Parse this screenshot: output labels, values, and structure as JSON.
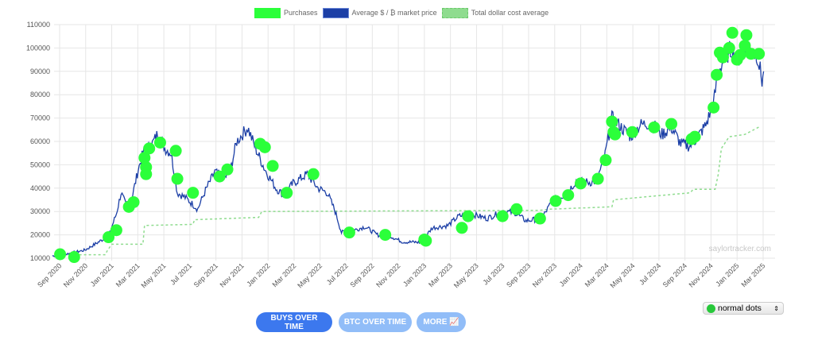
{
  "chart_data": {
    "type": "line",
    "title": "",
    "legend": [
      {
        "label": "Purchases",
        "color": "#2bff3a"
      },
      {
        "label": "Average $ / ₿ market price",
        "color": "#1c3fa6"
      },
      {
        "label": "Total dollar cost average",
        "color": "#8fdc8f"
      }
    ],
    "legend_position": "top",
    "ylim": [
      10000,
      110000
    ],
    "yticks": [
      "10000",
      "20000",
      "30000",
      "40000",
      "50000",
      "60000",
      "70000",
      "80000",
      "90000",
      "100000",
      "110000"
    ],
    "xticks": [
      "Sep 2020",
      "Nov 2020",
      "Jan 2021",
      "Mar 2021",
      "May 2021",
      "Jul 2021",
      "Sep 2021",
      "Nov 2021",
      "Jan 2022",
      "Mar 2022",
      "May 2022",
      "Jul 2022",
      "Sep 2022",
      "Nov 2022",
      "Jan 2023",
      "Mar 2023",
      "May 2023",
      "Jul 2023",
      "Sep 2023",
      "Nov 2023",
      "Jan 2024",
      "Mar 2024",
      "May 2024",
      "Jul 2024",
      "Sep 2024",
      "Nov 2024",
      "Jan 2025",
      "Mar 2025"
    ],
    "x_unit": "decimal year",
    "xlim": [
      2020.667,
      2025.167
    ],
    "grid": true,
    "price": [
      [
        2020.62,
        11000
      ],
      [
        2020.67,
        11200
      ],
      [
        2020.83,
        13500
      ],
      [
        2020.98,
        19500
      ],
      [
        2021.03,
        29000
      ],
      [
        2021.06,
        38000
      ],
      [
        2021.09,
        33000
      ],
      [
        2021.13,
        36000
      ],
      [
        2021.17,
        48000
      ],
      [
        2021.2,
        55000
      ],
      [
        2021.26,
        59000
      ],
      [
        2021.3,
        64000
      ],
      [
        2021.34,
        57000
      ],
      [
        2021.38,
        55000
      ],
      [
        2021.42,
        38000
      ],
      [
        2021.47,
        36000
      ],
      [
        2021.52,
        33000
      ],
      [
        2021.55,
        31000
      ],
      [
        2021.6,
        39000
      ],
      [
        2021.66,
        47000
      ],
      [
        2021.72,
        44000
      ],
      [
        2021.76,
        48000
      ],
      [
        2021.8,
        60000
      ],
      [
        2021.87,
        66000
      ],
      [
        2021.92,
        57000
      ],
      [
        2021.98,
        48000
      ],
      [
        2022.05,
        40000
      ],
      [
        2022.1,
        37000
      ],
      [
        2022.16,
        42000
      ],
      [
        2022.25,
        46000
      ],
      [
        2022.32,
        40000
      ],
      [
        2022.38,
        38000
      ],
      [
        2022.43,
        30000
      ],
      [
        2022.47,
        21000
      ],
      [
        2022.55,
        22000
      ],
      [
        2022.62,
        23500
      ],
      [
        2022.7,
        20000
      ],
      [
        2022.78,
        19500
      ],
      [
        2022.86,
        17000
      ],
      [
        2022.98,
        16800
      ],
      [
        2023.05,
        23000
      ],
      [
        2023.15,
        24000
      ],
      [
        2023.22,
        28000
      ],
      [
        2023.3,
        29000
      ],
      [
        2023.4,
        27000
      ],
      [
        2023.5,
        30000
      ],
      [
        2023.58,
        29500
      ],
      [
        2023.65,
        26000
      ],
      [
        2023.75,
        27000
      ],
      [
        2023.82,
        34500
      ],
      [
        2023.9,
        37000
      ],
      [
        2023.97,
        43000
      ],
      [
        2024.05,
        42500
      ],
      [
        2024.1,
        43000
      ],
      [
        2024.15,
        52000
      ],
      [
        2024.2,
        70000
      ],
      [
        2024.26,
        66000
      ],
      [
        2024.32,
        62000
      ],
      [
        2024.38,
        67000
      ],
      [
        2024.45,
        68000
      ],
      [
        2024.52,
        63000
      ],
      [
        2024.58,
        66000
      ],
      [
        2024.64,
        59000
      ],
      [
        2024.7,
        58000
      ],
      [
        2024.76,
        63000
      ],
      [
        2024.8,
        67000
      ],
      [
        2024.85,
        76000
      ],
      [
        2024.88,
        90000
      ],
      [
        2024.93,
        97000
      ],
      [
        2024.97,
        100000
      ],
      [
        2025.0,
        94000
      ],
      [
        2025.05,
        102000
      ],
      [
        2025.09,
        98000
      ],
      [
        2025.13,
        97000
      ],
      [
        2025.16,
        86000
      ],
      [
        2025.17,
        90000
      ]
    ],
    "dca": [
      [
        2020.67,
        11500
      ],
      [
        2020.96,
        11500
      ],
      [
        2020.97,
        13000
      ],
      [
        2021.0,
        16000
      ],
      [
        2021.2,
        16000
      ],
      [
        2021.21,
        24000
      ],
      [
        2021.52,
        24500
      ],
      [
        2021.53,
        26500
      ],
      [
        2021.94,
        27500
      ],
      [
        2021.96,
        30000
      ],
      [
        2023.74,
        30500
      ],
      [
        2023.8,
        31000
      ],
      [
        2024.2,
        32000
      ],
      [
        2024.21,
        35000
      ],
      [
        2024.45,
        36500
      ],
      [
        2024.7,
        38000
      ],
      [
        2024.72,
        39500
      ],
      [
        2024.86,
        39500
      ],
      [
        2024.88,
        46000
      ],
      [
        2024.9,
        57000
      ],
      [
        2024.95,
        62000
      ],
      [
        2025.05,
        63000
      ],
      [
        2025.15,
        66500
      ]
    ],
    "purchases": [
      [
        2020.67,
        11700
      ],
      [
        2020.76,
        10500
      ],
      [
        2020.98,
        19000
      ],
      [
        2021.03,
        22000
      ],
      [
        2021.11,
        32000
      ],
      [
        2021.14,
        34000
      ],
      [
        2021.21,
        53000
      ],
      [
        2021.22,
        49000
      ],
      [
        2021.22,
        46000
      ],
      [
        2021.24,
        57000
      ],
      [
        2021.31,
        59500
      ],
      [
        2021.41,
        56000
      ],
      [
        2021.42,
        44000
      ],
      [
        2021.52,
        38000
      ],
      [
        2021.69,
        45000
      ],
      [
        2021.74,
        48000
      ],
      [
        2021.95,
        59000
      ],
      [
        2021.98,
        57500
      ],
      [
        2022.03,
        49500
      ],
      [
        2022.12,
        38000
      ],
      [
        2022.29,
        46000
      ],
      [
        2022.52,
        21000
      ],
      [
        2022.75,
        20000
      ],
      [
        2023.0,
        18000
      ],
      [
        2023.01,
        17500
      ],
      [
        2023.24,
        23000
      ],
      [
        2023.28,
        28000
      ],
      [
        2023.5,
        28000
      ],
      [
        2023.59,
        31000
      ],
      [
        2023.74,
        27000
      ],
      [
        2023.84,
        34500
      ],
      [
        2023.92,
        37000
      ],
      [
        2024.0,
        42000
      ],
      [
        2024.11,
        44000
      ],
      [
        2024.16,
        52000
      ],
      [
        2024.2,
        68500
      ],
      [
        2024.21,
        64000
      ],
      [
        2024.22,
        63000
      ],
      [
        2024.33,
        64000
      ],
      [
        2024.47,
        66000
      ],
      [
        2024.58,
        67500
      ],
      [
        2024.71,
        61000
      ],
      [
        2024.73,
        62000
      ],
      [
        2024.85,
        74500
      ],
      [
        2024.87,
        88500
      ],
      [
        2024.89,
        98000
      ],
      [
        2024.91,
        96000
      ],
      [
        2024.95,
        100000
      ],
      [
        2024.97,
        106500
      ],
      [
        2025.0,
        95000
      ],
      [
        2025.02,
        97000
      ],
      [
        2025.05,
        101000
      ],
      [
        2025.06,
        105500
      ],
      [
        2025.09,
        97500
      ],
      [
        2025.14,
        97500
      ]
    ],
    "watermark": "saylortracker.com"
  },
  "buttons": {
    "buys": "BUYS OVER TIME",
    "btc": "BTC OVER TIME",
    "more": "MORE 📈"
  },
  "dots_select": {
    "value": "normal dots"
  }
}
